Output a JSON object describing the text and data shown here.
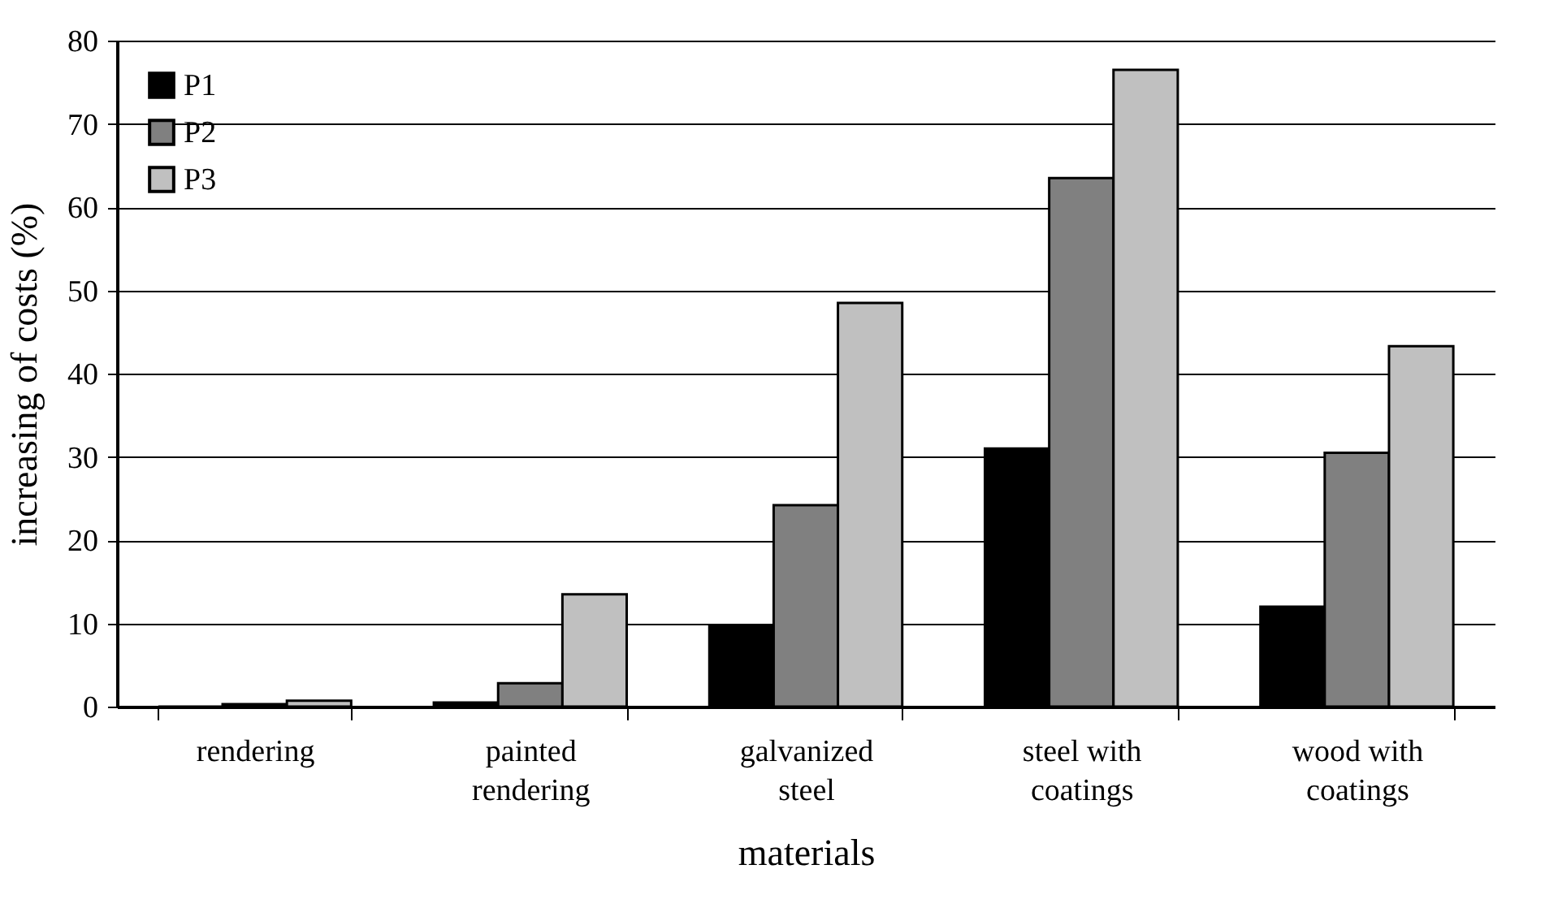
{
  "chart_data": {
    "type": "bar",
    "xlabel": "materials",
    "ylabel": "increasing of costs (%)",
    "categories": [
      "rendering",
      "painted\nrendering",
      "galvanized\nsteel",
      "steel with\ncoatings",
      "wood with\ncoatings"
    ],
    "series": [
      {
        "name": "P1",
        "color": "#000000",
        "values": [
          0,
          0.5,
          9.8,
          31,
          12
        ]
      },
      {
        "name": "P2",
        "color": "#808080",
        "values": [
          0.3,
          2.8,
          24.2,
          63.5,
          30.5
        ]
      },
      {
        "name": "P3",
        "color": "#c0c0c0",
        "values": [
          0.7,
          13.5,
          48.5,
          76.5,
          43.3
        ]
      }
    ],
    "ylim": [
      0,
      80
    ],
    "yticks": [
      0,
      10,
      20,
      30,
      40,
      50,
      60,
      70,
      80
    ],
    "grid": "y",
    "legend": "top left"
  }
}
